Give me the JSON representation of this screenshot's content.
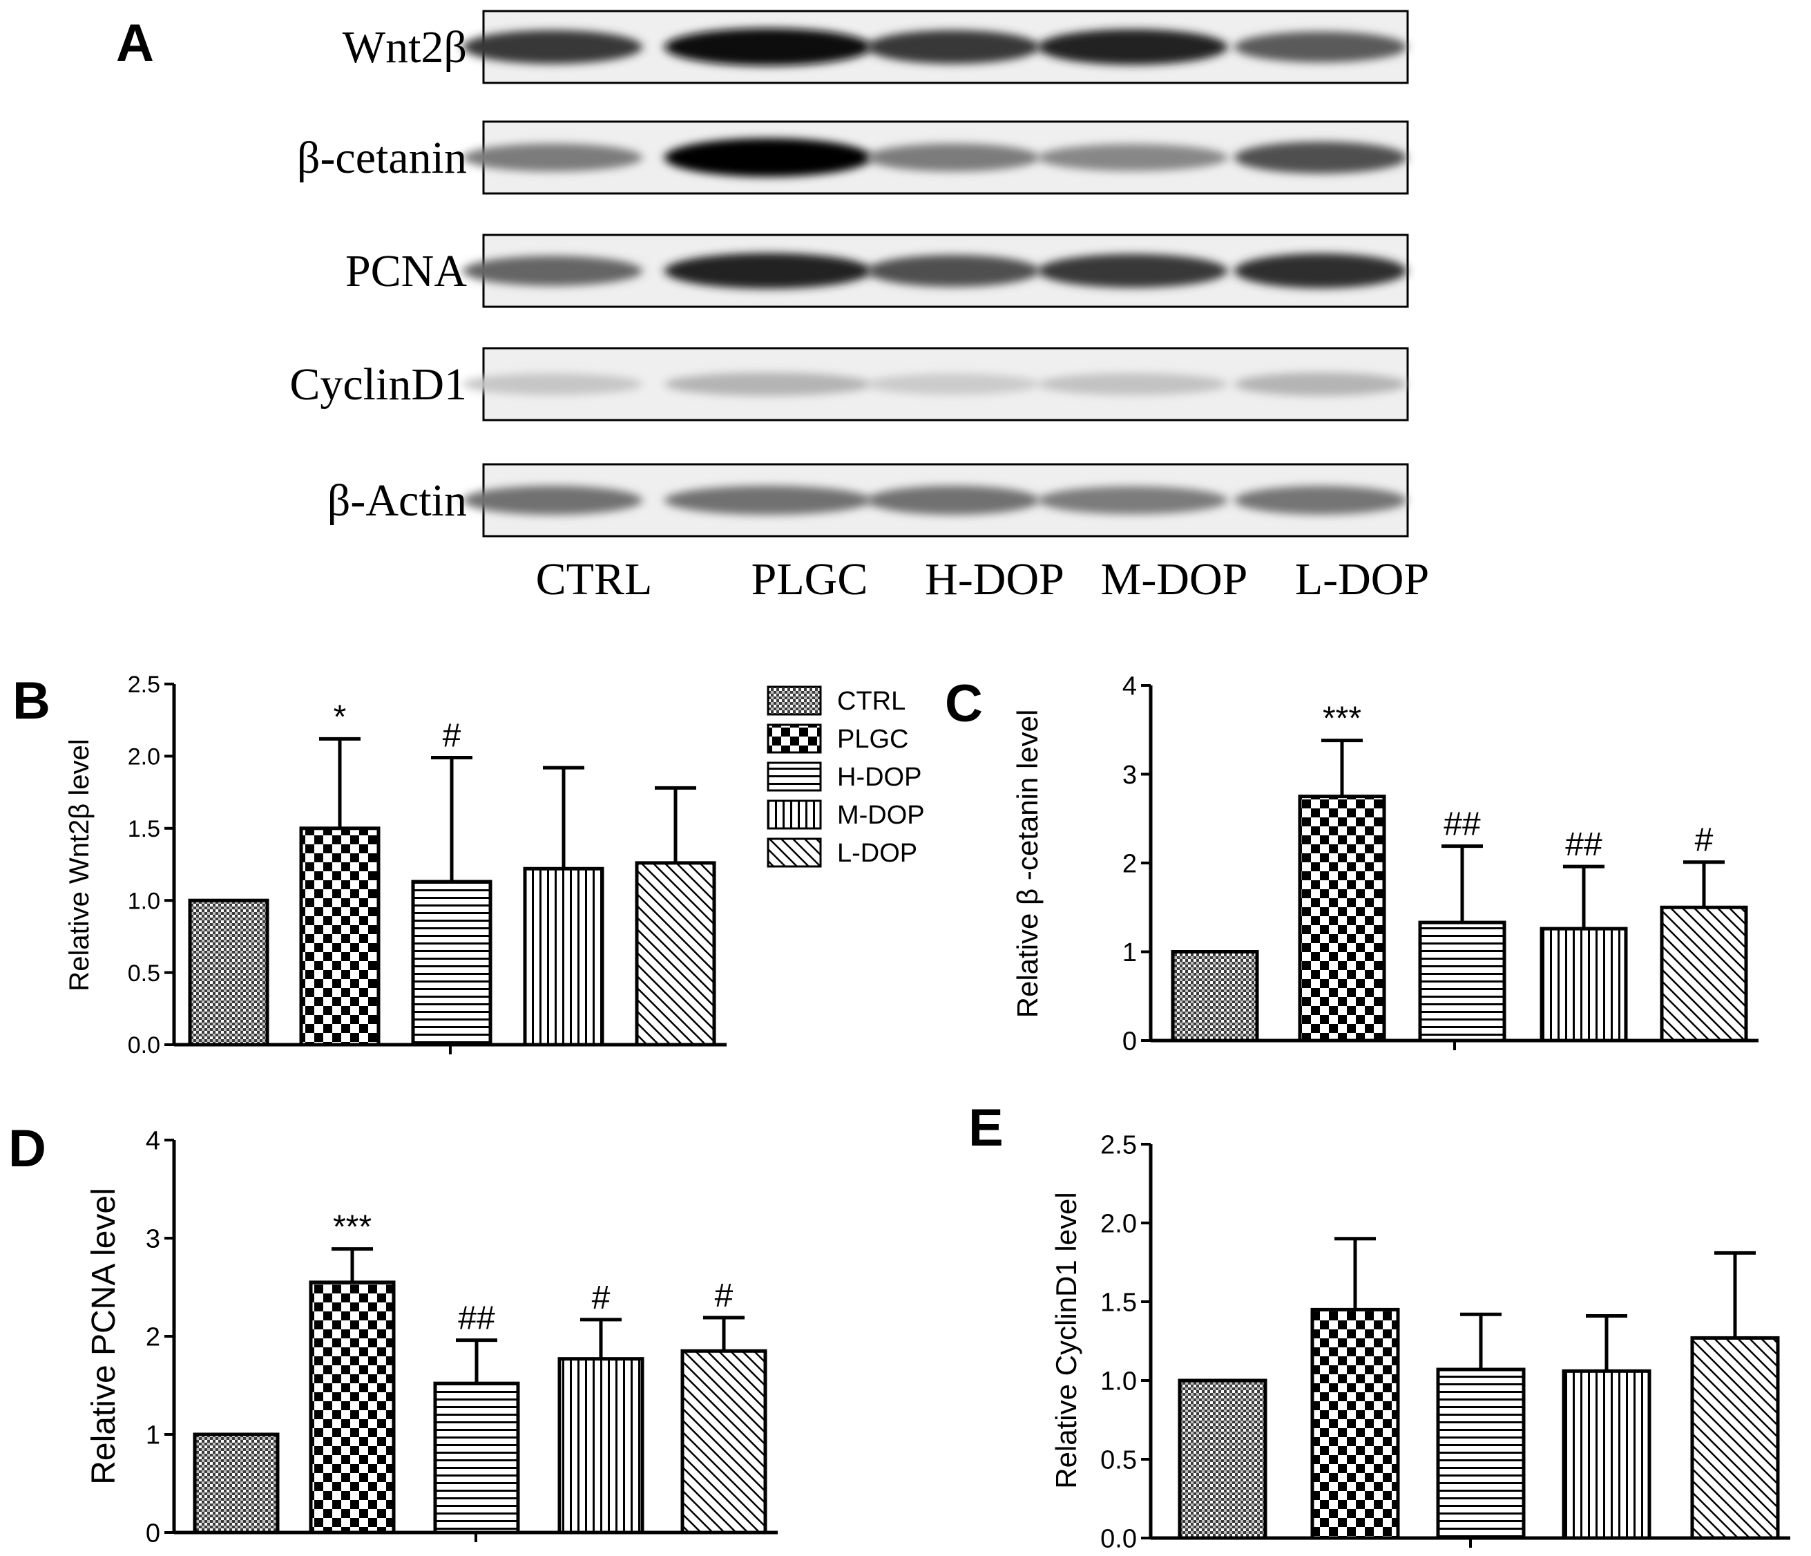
{
  "panel_letters": [
    "A",
    "B",
    "C",
    "D",
    "E"
  ],
  "blot": {
    "rows": [
      "Wnt2β",
      "β-cetanin",
      "PCNA",
      "CyclinD1",
      "β-Actin"
    ],
    "lanes": [
      "CTRL",
      "PLGC",
      "H-DOP",
      "M-DOP",
      "L-DOP"
    ],
    "band_intensity": [
      [
        0.75,
        0.95,
        0.75,
        0.85,
        0.6
      ],
      [
        0.45,
        1.0,
        0.45,
        0.4,
        0.65
      ],
      [
        0.55,
        0.85,
        0.65,
        0.75,
        0.8
      ],
      [
        0.12,
        0.2,
        0.1,
        0.14,
        0.2
      ],
      [
        0.5,
        0.5,
        0.5,
        0.45,
        0.48
      ]
    ]
  },
  "legend": [
    "CTRL",
    "PLGC",
    "H-DOP",
    "M-DOP",
    "L-DOP"
  ],
  "chart_data": [
    {
      "id": "B",
      "type": "bar",
      "categories": [
        "CTRL",
        "PLGC",
        "H-DOP",
        "M-DOP",
        "L-DOP"
      ],
      "values": [
        1.0,
        1.5,
        1.13,
        1.22,
        1.26
      ],
      "errors": [
        0,
        0.62,
        0.86,
        0.7,
        0.52
      ],
      "annotations": [
        "",
        "*",
        "#",
        "",
        ""
      ],
      "ylabel": "Relative Wnt2β level",
      "ylim": [
        0,
        2.5
      ],
      "yticks": [
        "0.0",
        "0.5",
        "1.0",
        "1.5",
        "2.0",
        "2.5"
      ]
    },
    {
      "id": "C",
      "type": "bar",
      "categories": [
        "CTRL",
        "PLGC",
        "H-DOP",
        "M-DOP",
        "L-DOP"
      ],
      "values": [
        1.0,
        2.75,
        1.33,
        1.26,
        1.5
      ],
      "errors": [
        0,
        0.63,
        0.86,
        0.7,
        0.51
      ],
      "annotations": [
        "",
        "***",
        "##",
        "##",
        "#"
      ],
      "ylabel": "Relative β -cetanin level",
      "ylim": [
        0,
        4
      ],
      "yticks": [
        "0",
        "1",
        "2",
        "3",
        "4"
      ]
    },
    {
      "id": "D",
      "type": "bar",
      "categories": [
        "CTRL",
        "PLGC",
        "H-DOP",
        "M-DOP",
        "L-DOP"
      ],
      "values": [
        1.0,
        2.55,
        1.52,
        1.77,
        1.85
      ],
      "errors": [
        0,
        0.34,
        0.44,
        0.4,
        0.34
      ],
      "annotations": [
        "",
        "***",
        "##",
        "#",
        "#"
      ],
      "ylabel": "Relative PCNA level",
      "ylim": [
        0,
        4
      ],
      "yticks": [
        "0",
        "1",
        "2",
        "3",
        "4"
      ]
    },
    {
      "id": "E",
      "type": "bar",
      "categories": [
        "CTRL",
        "PLGC",
        "H-DOP",
        "M-DOP",
        "L-DOP"
      ],
      "values": [
        1.0,
        1.45,
        1.07,
        1.06,
        1.27
      ],
      "errors": [
        0,
        0.45,
        0.35,
        0.35,
        0.54
      ],
      "annotations": [
        "",
        "",
        "",
        "",
        ""
      ],
      "ylabel": "Relative CyclinD1 level",
      "ylim": [
        0,
        2.5
      ],
      "yticks": [
        "0.0",
        "0.5",
        "1.0",
        "1.5",
        "2.0",
        "2.5"
      ]
    }
  ]
}
